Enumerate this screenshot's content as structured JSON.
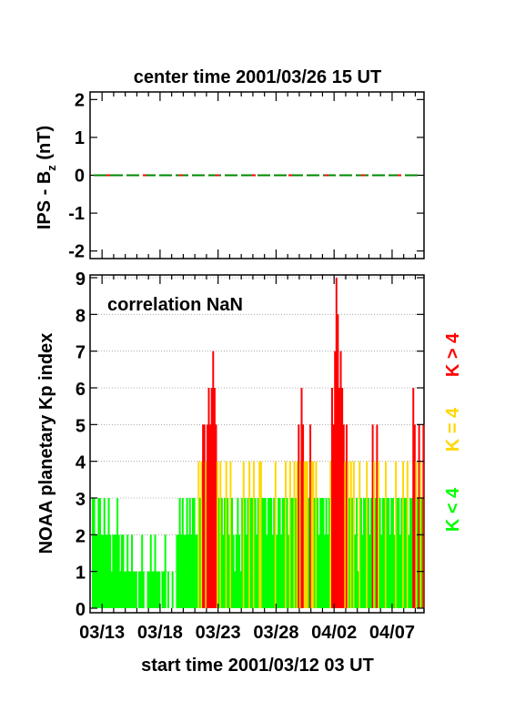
{
  "top_title": "center time 2001/03/26 15 UT",
  "bottom_title": "start time 2001/03/12 03 UT",
  "colors": {
    "low": "#00ff00",
    "mid": "#ffd700",
    "high": "#ff0000",
    "line_green": "#008800",
    "line_red": "#ff0000"
  },
  "chart_data": [
    {
      "type": "line",
      "ylabel": "IPS - B",
      "ylabel_sub": "z",
      "ylabel_tail": " (nT)",
      "ylim": [
        -2.2,
        2.2
      ],
      "yticks": [
        "2",
        "1",
        "0",
        "-1",
        "-2"
      ],
      "series": [
        {
          "values": [
            0,
            0
          ]
        }
      ]
    },
    {
      "type": "bar",
      "ylabel": "NOAA planetary Kp index",
      "annotation": "correlation NaN",
      "xlabels": [
        "03/13",
        "03/18",
        "03/23",
        "03/28",
        "04/02",
        "04/07"
      ],
      "ylim": [
        0,
        9
      ],
      "yticks": [
        "0",
        "1",
        "2",
        "3",
        "4",
        "5",
        "6",
        "7",
        "8",
        "9"
      ],
      "grid": true,
      "legend": [
        "K < 4",
        "K = 4",
        "K > 4"
      ],
      "x_start": "2001/03/12 03 UT",
      "step_hours": 3,
      "values": [
        3,
        3,
        2,
        2,
        3,
        3,
        2,
        2,
        3,
        2,
        2,
        3,
        2,
        1,
        2,
        2,
        2,
        3,
        2,
        1,
        2,
        2,
        1,
        1,
        2,
        1,
        1,
        2,
        1,
        1,
        1,
        0,
        1,
        1,
        2,
        1,
        0,
        0,
        1,
        1,
        2,
        1,
        1,
        2,
        1,
        1,
        1,
        0,
        1,
        1,
        2,
        0,
        1,
        0,
        0,
        1,
        0,
        0,
        2,
        2,
        3,
        2,
        3,
        2,
        2,
        3,
        2,
        3,
        2,
        3,
        3,
        2,
        2,
        4,
        3,
        4,
        5,
        5,
        4,
        5,
        6,
        5,
        6,
        7,
        6,
        5,
        4,
        3,
        4,
        3,
        2,
        3,
        4,
        3,
        2,
        4,
        3,
        2,
        1,
        2,
        3,
        2,
        1,
        3,
        4,
        3,
        2,
        3,
        4,
        3,
        3,
        4,
        3,
        2,
        3,
        4,
        4,
        3,
        3,
        3,
        2,
        3,
        3,
        3,
        2,
        3,
        4,
        2,
        3,
        3,
        2,
        3,
        3,
        4,
        3,
        2,
        4,
        3,
        3,
        4,
        3,
        4,
        5,
        4,
        6,
        5,
        4,
        4,
        4,
        3,
        5,
        4,
        4,
        3,
        4,
        3,
        2,
        3,
        3,
        3,
        2,
        3,
        2,
        3,
        4,
        6,
        5,
        7,
        9,
        8,
        6,
        7,
        6,
        5,
        4,
        5,
        4,
        3,
        4,
        3,
        4,
        2,
        3,
        1,
        4,
        3,
        2,
        3,
        3,
        4,
        3,
        2,
        3,
        5,
        4,
        3,
        5,
        4,
        3,
        2,
        3,
        3,
        4,
        3,
        3,
        2,
        3,
        3,
        2,
        4,
        3,
        3,
        2,
        3,
        4,
        3,
        3,
        4,
        2,
        3,
        3,
        6,
        5,
        4,
        3,
        5,
        4,
        3,
        5
      ]
    }
  ]
}
